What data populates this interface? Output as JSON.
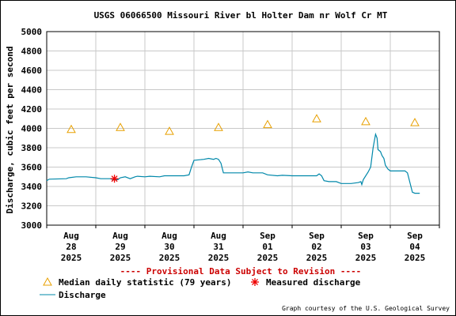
{
  "chart_data": {
    "type": "line",
    "title": "USGS 06066500 Missouri River bl Holter Dam nr Wolf Cr MT",
    "ylabel": "Discharge, cubic feet per second",
    "xlabel": "",
    "ylim": [
      3000,
      5000
    ],
    "yticks": [
      3000,
      3200,
      3400,
      3600,
      3800,
      4000,
      4200,
      4400,
      4600,
      4800,
      5000
    ],
    "xlim": [
      0,
      8
    ],
    "x_ticks": [
      {
        "x": 0.5,
        "lines": [
          "Aug",
          "28",
          "2025"
        ]
      },
      {
        "x": 1.5,
        "lines": [
          "Aug",
          "29",
          "2025"
        ]
      },
      {
        "x": 2.5,
        "lines": [
          "Aug",
          "30",
          "2025"
        ]
      },
      {
        "x": 3.5,
        "lines": [
          "Aug",
          "31",
          "2025"
        ]
      },
      {
        "x": 4.5,
        "lines": [
          "Sep",
          "01",
          "2025"
        ]
      },
      {
        "x": 5.5,
        "lines": [
          "Sep",
          "02",
          "2025"
        ]
      },
      {
        "x": 6.5,
        "lines": [
          "Sep",
          "03",
          "2025"
        ]
      },
      {
        "x": 7.5,
        "lines": [
          "Sep",
          "04",
          "2025"
        ]
      }
    ],
    "grid": true,
    "series": [
      {
        "name": "Discharge",
        "style": "line",
        "color": "#0088aa",
        "points": [
          [
            0.0,
            3460
          ],
          [
            0.05,
            3475
          ],
          [
            0.4,
            3480
          ],
          [
            0.45,
            3490
          ],
          [
            0.6,
            3500
          ],
          [
            0.8,
            3500
          ],
          [
            1.0,
            3490
          ],
          [
            1.1,
            3480
          ],
          [
            1.3,
            3480
          ],
          [
            1.35,
            3470
          ],
          [
            1.45,
            3470
          ],
          [
            1.5,
            3490
          ],
          [
            1.6,
            3500
          ],
          [
            1.7,
            3480
          ],
          [
            1.8,
            3500
          ],
          [
            1.85,
            3505
          ],
          [
            2.0,
            3500
          ],
          [
            2.1,
            3505
          ],
          [
            2.3,
            3500
          ],
          [
            2.4,
            3510
          ],
          [
            2.8,
            3510
          ],
          [
            2.9,
            3520
          ],
          [
            2.95,
            3600
          ],
          [
            3.0,
            3670
          ],
          [
            3.2,
            3680
          ],
          [
            3.3,
            3690
          ],
          [
            3.4,
            3680
          ],
          [
            3.45,
            3690
          ],
          [
            3.5,
            3680
          ],
          [
            3.55,
            3640
          ],
          [
            3.6,
            3540
          ],
          [
            4.0,
            3540
          ],
          [
            4.1,
            3550
          ],
          [
            4.2,
            3540
          ],
          [
            4.4,
            3540
          ],
          [
            4.5,
            3520
          ],
          [
            4.7,
            3510
          ],
          [
            4.8,
            3515
          ],
          [
            5.0,
            3510
          ],
          [
            5.5,
            3510
          ],
          [
            5.55,
            3530
          ],
          [
            5.6,
            3510
          ],
          [
            5.65,
            3460
          ],
          [
            5.75,
            3450
          ],
          [
            5.9,
            3450
          ],
          [
            6.0,
            3430
          ],
          [
            6.2,
            3430
          ],
          [
            6.35,
            3440
          ],
          [
            6.4,
            3450
          ],
          [
            6.42,
            3420
          ],
          [
            6.45,
            3470
          ],
          [
            6.55,
            3550
          ],
          [
            6.6,
            3600
          ],
          [
            6.65,
            3800
          ],
          [
            6.7,
            3940
          ],
          [
            6.73,
            3900
          ],
          [
            6.75,
            3780
          ],
          [
            6.8,
            3760
          ],
          [
            6.83,
            3720
          ],
          [
            6.87,
            3690
          ],
          [
            6.9,
            3620
          ],
          [
            6.95,
            3580
          ],
          [
            7.0,
            3560
          ],
          [
            7.3,
            3560
          ],
          [
            7.35,
            3540
          ],
          [
            7.4,
            3440
          ],
          [
            7.45,
            3340
          ],
          [
            7.5,
            3330
          ],
          [
            7.6,
            3330
          ]
        ]
      },
      {
        "name": "Median daily statistic (79 years)",
        "style": "marker-triangle",
        "color": "#e8a000",
        "points": [
          [
            0.5,
            3990
          ],
          [
            1.5,
            4010
          ],
          [
            2.5,
            3970
          ],
          [
            3.5,
            4010
          ],
          [
            4.5,
            4040
          ],
          [
            5.5,
            4100
          ],
          [
            6.5,
            4070
          ],
          [
            7.5,
            4060
          ]
        ]
      },
      {
        "name": "Measured discharge",
        "style": "marker-asterisk",
        "color": "#ee0000",
        "points": [
          [
            1.38,
            3480
          ]
        ]
      }
    ],
    "annotation": "---- Provisional Data Subject to Revision ----",
    "credit": "Graph courtesy of the U.S. Geological Survey",
    "legend_placement": "bottom-left"
  },
  "colors": {
    "grid": "#c8c8c8",
    "annotation": "#cc0000",
    "text": "#000000"
  }
}
